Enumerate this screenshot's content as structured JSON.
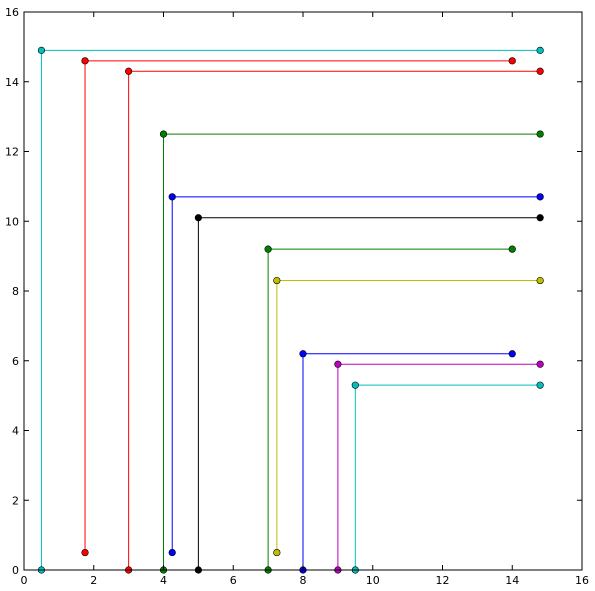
{
  "chart_data": {
    "type": "line",
    "title": "",
    "xlabel": "",
    "ylabel": "",
    "xlim": [
      0,
      16
    ],
    "ylim": [
      0,
      16
    ],
    "xticks": [
      0,
      2,
      4,
      6,
      8,
      10,
      12,
      14,
      16
    ],
    "yticks": [
      0,
      2,
      4,
      6,
      8,
      10,
      12,
      14,
      16
    ],
    "xtick_labels": [
      "0",
      "2",
      "4",
      "6",
      "8",
      "10",
      "12",
      "14",
      "16"
    ],
    "ytick_labels": [
      "0",
      "2",
      "4",
      "6",
      "8",
      "10",
      "12",
      "14",
      "16"
    ],
    "grid": false,
    "legend": "none",
    "series": [
      {
        "color": "#00bfbf",
        "points": [
          [
            0.5,
            0
          ],
          [
            0.5,
            14.9
          ],
          [
            14.8,
            14.9
          ]
        ]
      },
      {
        "color": "#ff0000",
        "points": [
          [
            1.75,
            0.5
          ],
          [
            1.75,
            14.6
          ],
          [
            14.0,
            14.6
          ]
        ]
      },
      {
        "color": "#ff0000",
        "points": [
          [
            3.0,
            0
          ],
          [
            3.0,
            14.3
          ],
          [
            14.8,
            14.3
          ]
        ]
      },
      {
        "color": "#008000",
        "points": [
          [
            4.0,
            0
          ],
          [
            4.0,
            12.5
          ],
          [
            14.8,
            12.5
          ]
        ]
      },
      {
        "color": "#0000ff",
        "points": [
          [
            4.25,
            0.5
          ],
          [
            4.25,
            10.7
          ],
          [
            14.8,
            10.7
          ]
        ]
      },
      {
        "color": "#000000",
        "points": [
          [
            5.0,
            0
          ],
          [
            5.0,
            10.1
          ],
          [
            14.8,
            10.1
          ]
        ]
      },
      {
        "color": "#008000",
        "points": [
          [
            7.0,
            0
          ],
          [
            7.0,
            9.2
          ],
          [
            14.0,
            9.2
          ]
        ]
      },
      {
        "color": "#bfbf00",
        "points": [
          [
            7.25,
            0.5
          ],
          [
            7.25,
            8.3
          ],
          [
            14.8,
            8.3
          ]
        ]
      },
      {
        "color": "#0000ff",
        "points": [
          [
            8.0,
            0
          ],
          [
            8.0,
            6.2
          ],
          [
            14.0,
            6.2
          ]
        ]
      },
      {
        "color": "#bf00bf",
        "points": [
          [
            9.0,
            0
          ],
          [
            9.0,
            5.9
          ],
          [
            14.8,
            5.9
          ]
        ]
      },
      {
        "color": "#00bfbf",
        "points": [
          [
            9.5,
            0
          ],
          [
            9.5,
            5.3
          ],
          [
            14.8,
            5.3
          ]
        ]
      }
    ]
  }
}
